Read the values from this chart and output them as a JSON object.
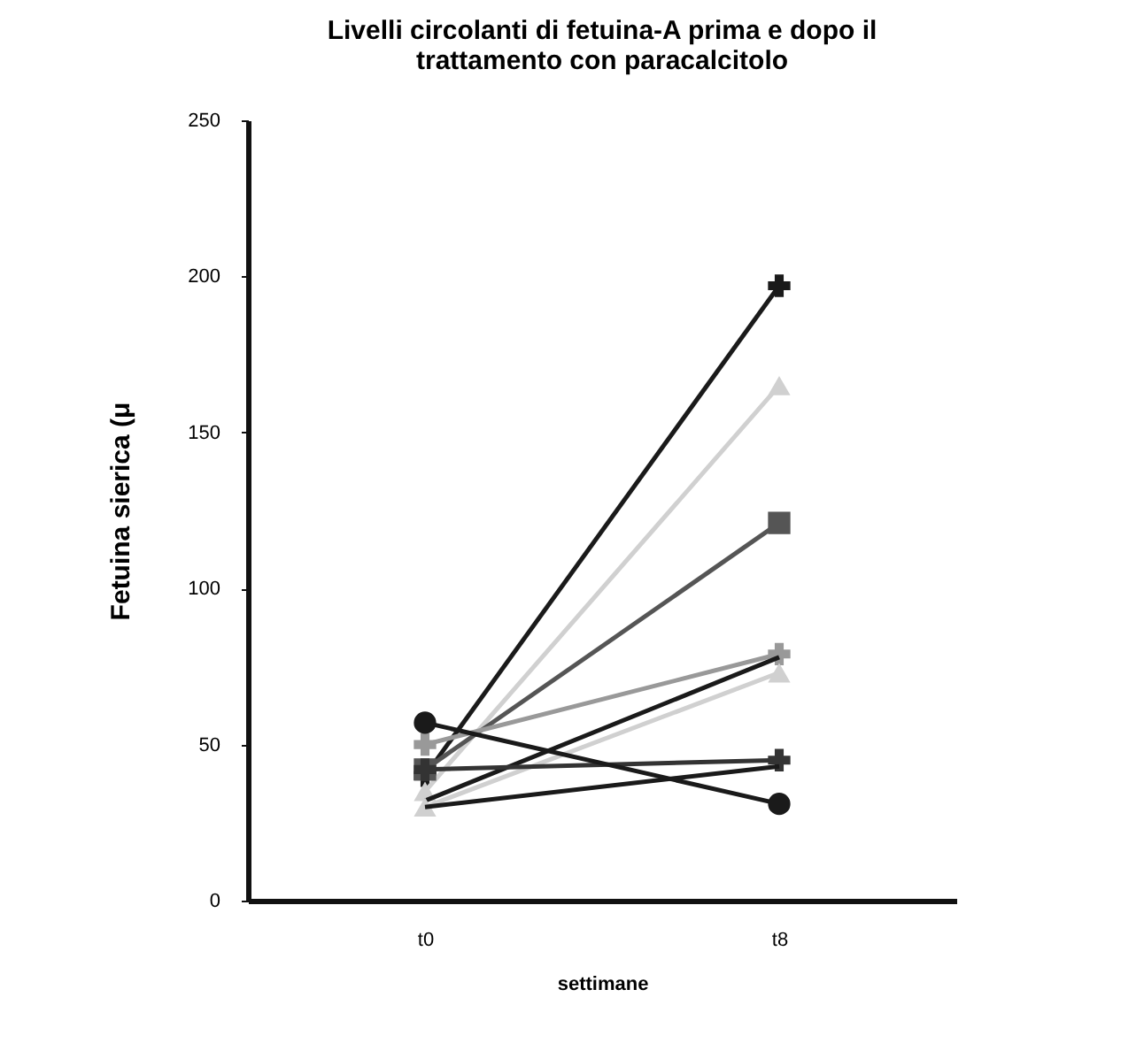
{
  "chart_data": {
    "type": "line",
    "title": [
      "Livelli circolanti di fetuina-A prima e dopo il",
      "trattamento con paracalcitolo"
    ],
    "xlabel": "settimane",
    "ylabel": "Fetuina sierica (μ",
    "categories": [
      "t0",
      "t8"
    ],
    "ylim": [
      0,
      250
    ],
    "yticks": [
      0,
      50,
      100,
      150,
      200,
      250
    ],
    "grid": false,
    "series": [
      {
        "color": "#1a1a1a",
        "marker": "cross",
        "values": [
          40,
          197
        ]
      },
      {
        "color": "#d0d0d0",
        "marker": "triangle",
        "values": [
          35,
          165
        ]
      },
      {
        "color": "#555555",
        "marker": "square",
        "values": [
          42,
          121
        ]
      },
      {
        "color": "#999999",
        "marker": "cross",
        "values": [
          50,
          79
        ]
      },
      {
        "color": "#1a1a1a",
        "marker": "none",
        "values": [
          32,
          78
        ]
      },
      {
        "color": "#d0d0d0",
        "marker": "triangle",
        "values": [
          30,
          73
        ]
      },
      {
        "color": "#333333",
        "marker": "cross",
        "values": [
          42,
          45
        ]
      },
      {
        "color": "#1a1a1a",
        "marker": "none",
        "values": [
          30,
          43
        ]
      },
      {
        "color": "#1a1a1a",
        "marker": "circle",
        "values": [
          57,
          31
        ]
      }
    ]
  }
}
